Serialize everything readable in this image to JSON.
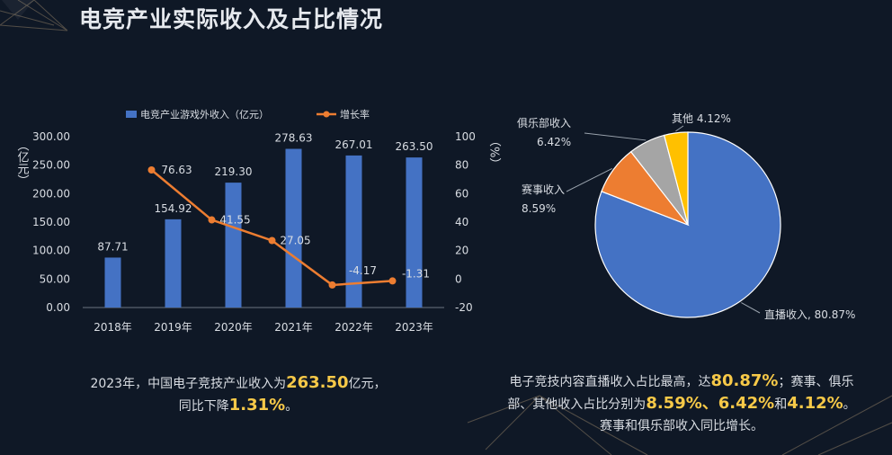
{
  "title": "电竞产业实际收入及占比情况",
  "colors": {
    "bar": "#4472c4",
    "line": "#ed7d31",
    "highlight": "#f7c948",
    "text": "#d9dde3"
  },
  "chart_data": [
    {
      "type": "bar",
      "categories": [
        "2018年",
        "2019年",
        "2020年",
        "2021年",
        "2022年",
        "2023年"
      ],
      "series": [
        {
          "name": "电竞产业游戏外收入（亿元）",
          "type": "bar",
          "axis": "left",
          "values": [
            87.71,
            154.92,
            219.3,
            278.63,
            267.01,
            263.5
          ],
          "labels": [
            "87.71",
            "154.92",
            "219.30",
            "278.63",
            "267.01",
            "263.50"
          ]
        },
        {
          "name": "增长率",
          "type": "line",
          "axis": "right",
          "values": [
            null,
            76.63,
            41.55,
            27.05,
            -4.17,
            -1.31
          ],
          "labels": [
            "",
            "76.63",
            "41.55",
            "27.05",
            "-4.17",
            "-1.31"
          ]
        }
      ],
      "ylabel_left": "亿元",
      "ylabel_right": "%",
      "ylim_left": [
        0,
        300
      ],
      "yticks_left": [
        "0.00",
        "50.00",
        "100.00",
        "150.00",
        "200.00",
        "250.00",
        "300.00"
      ],
      "ylim_right": [
        -20,
        100
      ],
      "yticks_right": [
        "-20",
        "0",
        "20",
        "40",
        "60",
        "80",
        "100"
      ],
      "legend": "top"
    },
    {
      "type": "pie",
      "slices": [
        {
          "label": "直播收入",
          "value": 80.87,
          "text": "80.87%",
          "color": "#4472c4"
        },
        {
          "label": "赛事收入",
          "value": 8.59,
          "text": "8.59%",
          "color": "#ed7d31"
        },
        {
          "label": "俱乐部收入",
          "value": 6.42,
          "text": "6.42%",
          "color": "#a5a5a5"
        },
        {
          "label": "其他",
          "value": 4.12,
          "text": "4.12%",
          "color": "#ffc000"
        }
      ]
    }
  ],
  "captions": {
    "left": {
      "line1_pre": "2023年，中国电子竞技产业收入为",
      "line1_hl": "263.50",
      "line1_post": "亿元，",
      "line2_pre": "同比下降",
      "line2_hl": "1.31%",
      "line2_post": "。"
    },
    "right": {
      "line1_pre": "电子竞技内容直播收入占比最高，达",
      "line1_hl": "80.87%",
      "line1_post": "；赛事、俱乐",
      "line2_pre": "部、其他收入占比分别为",
      "line2_hl": "8.59%、6.42%",
      "line2_mid": "和",
      "line2_hl2": "4.12%",
      "line2_post": "。",
      "line3": "赛事和俱乐部收入同比增长。"
    }
  }
}
